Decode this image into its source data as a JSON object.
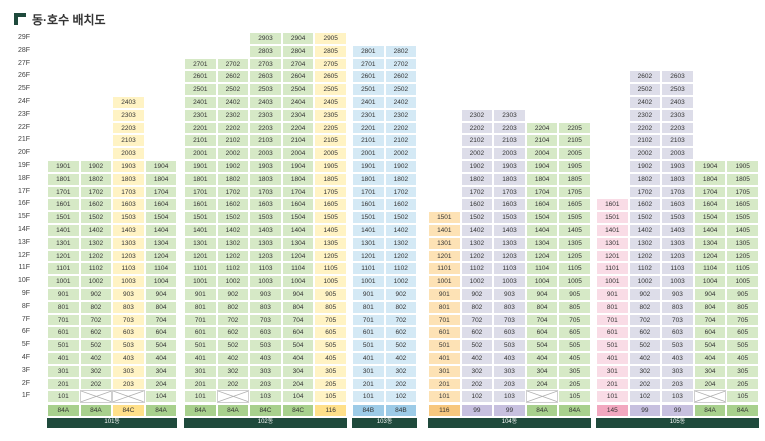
{
  "title": "동·호수 배치도",
  "floor_labels": [
    "29F",
    "28F",
    "27F",
    "26F",
    "25F",
    "24F",
    "23F",
    "22F",
    "21F",
    "20F",
    "19F",
    "18F",
    "17F",
    "16F",
    "15F",
    "14F",
    "13F",
    "12F",
    "11F",
    "10F",
    "9F",
    "8F",
    "7F",
    "6F",
    "5F",
    "4F",
    "3F",
    "2F",
    "1F"
  ],
  "colors": {
    "green": "#d6e9c6",
    "yellow": "#fff3c4",
    "blue": "#d4e9f5",
    "purple": "#dddde9",
    "pink": "#f9dce6",
    "orange": "#fde2b5",
    "type_green": "#a8d08d",
    "type_yellow": "#ffe08a",
    "type_blue": "#9dcbe7",
    "type_purple": "#c7c0df",
    "type_orange": "#f7c77e",
    "type_pink": "#f2a8c0",
    "bar": "#1f4a3c"
  },
  "buildings": [
    {
      "dong": "101동",
      "columns": [
        {
          "line": "01",
          "color": "green",
          "top": 19,
          "blank": [],
          "type": "84A",
          "type_color": "type_green"
        },
        {
          "line": "02",
          "color": "green",
          "top": 19,
          "blank": [
            1
          ],
          "type": "84A",
          "type_color": "type_green"
        },
        {
          "line": "03",
          "color": "yellow",
          "top": 24,
          "blank": [
            1
          ],
          "type": "84C",
          "type_color": "type_yellow"
        },
        {
          "line": "04",
          "color": "green",
          "top": 19,
          "blank": [],
          "type": "84A",
          "type_color": "type_green"
        }
      ]
    },
    {
      "dong": "102동",
      "columns": [
        {
          "line": "01",
          "color": "green",
          "top": 27,
          "blank": [],
          "type": "84A",
          "type_color": "type_green"
        },
        {
          "line": "02",
          "color": "green",
          "top": 27,
          "blank": [
            1
          ],
          "type": "84A",
          "type_color": "type_green"
        },
        {
          "line": "03",
          "color": "green",
          "top": 29,
          "blank": [],
          "type": "84C",
          "type_color": "type_green"
        },
        {
          "line": "04",
          "color": "green",
          "top": 29,
          "blank": [],
          "type": "84C",
          "type_color": "type_green"
        },
        {
          "line": "05",
          "color": "yellow",
          "top": 29,
          "blank": [],
          "type": "116",
          "type_color": "type_yellow"
        }
      ]
    },
    {
      "dong": "103동",
      "columns": [
        {
          "line": "01",
          "color": "blue",
          "top": 28,
          "blank": [],
          "type": "84B",
          "type_color": "type_blue"
        },
        {
          "line": "02",
          "color": "blue",
          "top": 28,
          "blank": [],
          "type": "84B",
          "type_color": "type_blue"
        }
      ]
    },
    {
      "dong": "104동",
      "columns": [
        {
          "line": "01",
          "color": "orange",
          "top": 15,
          "blank": [],
          "type": "116",
          "type_color": "type_orange"
        },
        {
          "line": "02",
          "color": "purple",
          "top": 23,
          "blank": [],
          "type": "99",
          "type_color": "type_purple"
        },
        {
          "line": "03",
          "color": "purple",
          "top": 23,
          "blank": [],
          "type": "99",
          "type_color": "type_purple"
        },
        {
          "line": "04",
          "color": "green",
          "top": 22,
          "blank": [
            1
          ],
          "type": "84A",
          "type_color": "type_green"
        },
        {
          "line": "05",
          "color": "green",
          "top": 22,
          "blank": [],
          "type": "84A",
          "type_color": "type_green"
        }
      ]
    },
    {
      "dong": "105동",
      "columns": [
        {
          "line": "01",
          "color": "pink",
          "top": 16,
          "blank": [],
          "type": "145",
          "type_color": "type_pink"
        },
        {
          "line": "02",
          "color": "purple",
          "top": 26,
          "blank": [],
          "type": "99",
          "type_color": "type_purple"
        },
        {
          "line": "03",
          "color": "purple",
          "top": 26,
          "blank": [],
          "type": "99",
          "type_color": "type_purple"
        },
        {
          "line": "04",
          "color": "green",
          "top": 19,
          "blank": [
            1
          ],
          "type": "84A",
          "type_color": "type_green"
        },
        {
          "line": "05",
          "color": "green",
          "top": 19,
          "blank": [],
          "type": "84A",
          "type_color": "type_green"
        }
      ]
    }
  ]
}
